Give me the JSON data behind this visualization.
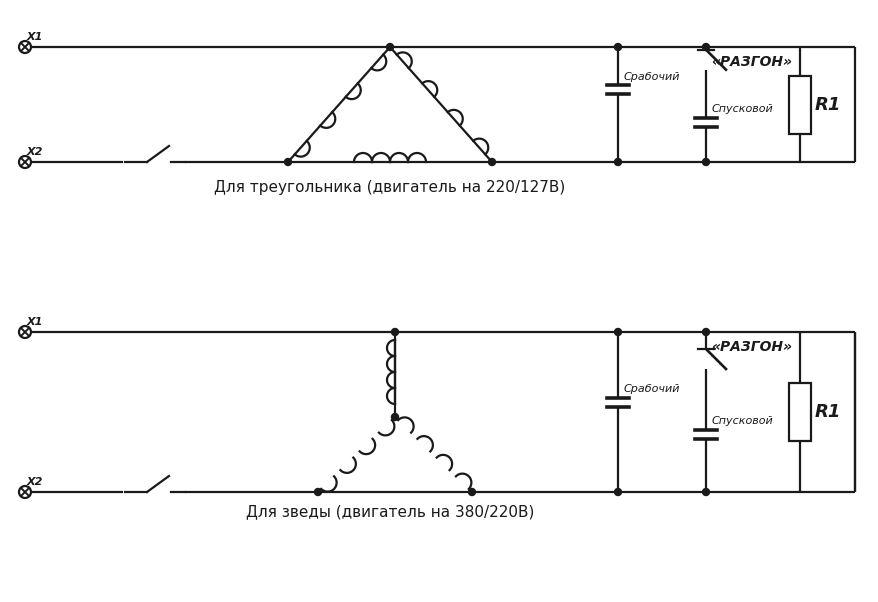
{
  "bg_color": "#ffffff",
  "line_color": "#1a1a1a",
  "line_width": 1.6,
  "fig_width": 8.79,
  "fig_height": 6.02,
  "top_label": "Для треугольника (двигатель на 220/127В)",
  "bottom_label": "Для зведы (двигатель на 380/220В)",
  "razgon_label": "«РАЗГОН»",
  "srabochiy_label": "Срабочий",
  "spuskovoy_label": "Спусковой",
  "r1_label": "R1",
  "x1_label": "X1",
  "x2_label": "X2"
}
